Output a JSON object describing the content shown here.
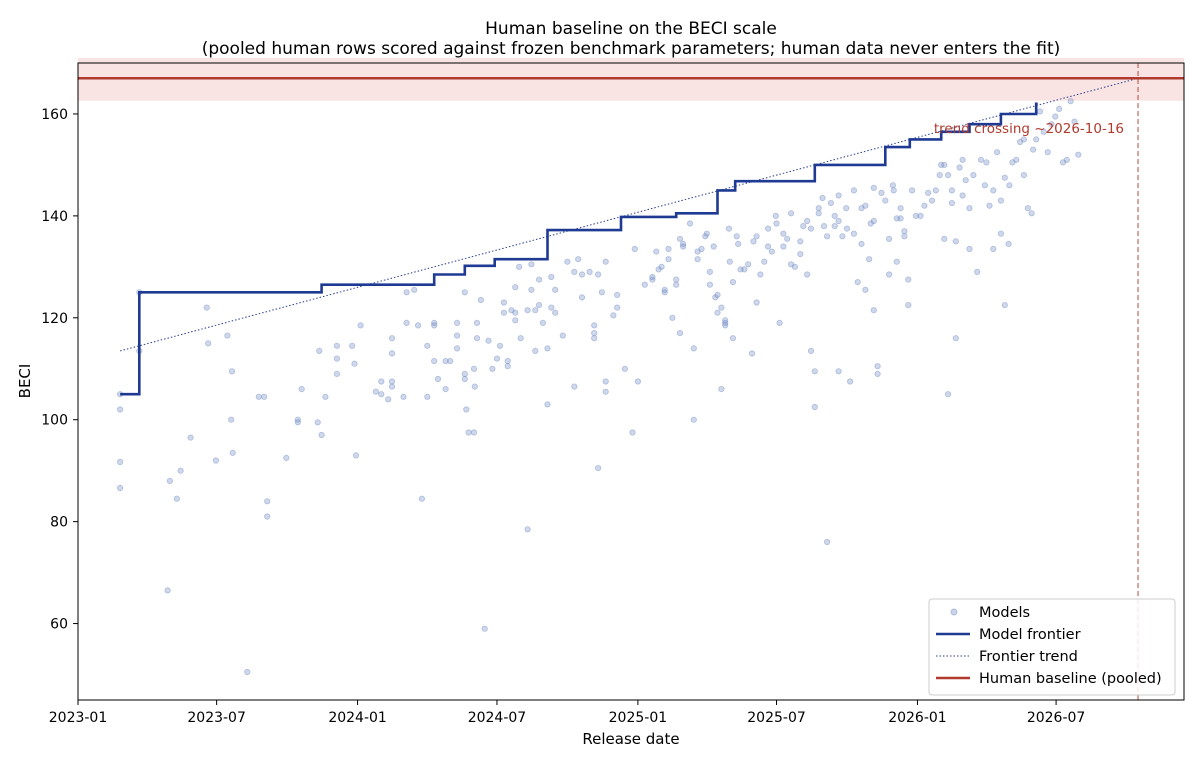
{
  "chart_data": {
    "type": "scatter",
    "title": "Human baseline on the BECI scale",
    "subtitle": "(pooled human rows scored against frozen benchmark parameters; human data never enters the fit)",
    "xlabel": "Release date",
    "ylabel": "BECI",
    "x_ticks": [
      "2023-01",
      "2023-07",
      "2024-01",
      "2024-07",
      "2025-01",
      "2025-07",
      "2026-01",
      "2026-07"
    ],
    "y_ticks": [
      60,
      80,
      100,
      120,
      140,
      160
    ],
    "xlim": [
      "2023-01-01",
      "2026-12-15"
    ],
    "ylim": [
      45,
      170
    ],
    "grid": false,
    "legend_position": "lower-right",
    "legend": [
      "Models",
      "Model frontier",
      "Frontier trend",
      "Human baseline (pooled)"
    ],
    "annotation": "trend crossing ~2026-10-16",
    "colors": {
      "models": "#6b86c2",
      "frontier": "#1f3a93",
      "trend": "#2a3f8f",
      "human": "#b03a2e",
      "human_band": "#f4cccc"
    },
    "human_baseline": {
      "value": 167,
      "band": [
        162.6,
        171.0
      ]
    },
    "trend_crossing_date": "2026-10-16",
    "trend_line": [
      {
        "x": "2023-02-25",
        "y": 113.5
      },
      {
        "x": "2026-10-16",
        "y": 167.0
      }
    ],
    "frontier": [
      {
        "x": "2023-02-25",
        "y": 105
      },
      {
        "x": "2023-03-22",
        "y": 125
      },
      {
        "x": "2023-11-15",
        "y": 126.5
      },
      {
        "x": "2024-04-10",
        "y": 128.5
      },
      {
        "x": "2024-05-20",
        "y": 130.2
      },
      {
        "x": "2024-06-28",
        "y": 131.5
      },
      {
        "x": "2024-09-05",
        "y": 137.2
      },
      {
        "x": "2024-12-10",
        "y": 139.8
      },
      {
        "x": "2025-02-20",
        "y": 140.5
      },
      {
        "x": "2025-04-15",
        "y": 145
      },
      {
        "x": "2025-05-08",
        "y": 146.8
      },
      {
        "x": "2025-08-20",
        "y": 150
      },
      {
        "x": "2025-11-20",
        "y": 153.5
      },
      {
        "x": "2025-12-22",
        "y": 155
      },
      {
        "x": "2026-02-01",
        "y": 156.5
      },
      {
        "x": "2026-03-10",
        "y": 158
      },
      {
        "x": "2026-04-20",
        "y": 160
      },
      {
        "x": "2026-06-05",
        "y": 162
      },
      {
        "x": "2026-06-07",
        "y": 162
      }
    ],
    "models": [
      [
        "2023-02-25",
        105
      ],
      [
        "2023-02-25",
        102
      ],
      [
        "2023-02-25",
        91.7
      ],
      [
        "2023-02-25",
        86.6
      ],
      [
        "2023-03-22",
        125
      ],
      [
        "2023-03-22",
        113.5
      ],
      [
        "2023-04-28",
        66.5
      ],
      [
        "2023-05-01",
        88
      ],
      [
        "2023-05-10",
        84.5
      ],
      [
        "2023-05-15",
        90
      ],
      [
        "2023-05-28",
        96.5
      ],
      [
        "2023-06-18",
        122
      ],
      [
        "2023-06-20",
        115
      ],
      [
        "2023-06-30",
        92
      ],
      [
        "2023-07-15",
        116.5
      ],
      [
        "2023-07-20",
        100
      ],
      [
        "2023-07-21",
        109.5
      ],
      [
        "2023-07-22",
        93.5
      ],
      [
        "2023-08-10",
        50.5
      ],
      [
        "2023-08-25",
        104.5
      ],
      [
        "2023-09-01",
        104.5
      ],
      [
        "2023-09-05",
        84
      ],
      [
        "2023-09-05",
        81
      ],
      [
        "2023-09-30",
        92.5
      ],
      [
        "2023-10-15",
        100
      ],
      [
        "2023-10-15",
        99.5
      ],
      [
        "2023-10-20",
        106
      ],
      [
        "2023-11-10",
        99.5
      ],
      [
        "2023-11-12",
        113.5
      ],
      [
        "2023-11-15",
        97
      ],
      [
        "2023-11-20",
        104.5
      ],
      [
        "2023-12-05",
        114.5
      ],
      [
        "2023-12-05",
        112
      ],
      [
        "2023-12-05",
        109
      ],
      [
        "2023-12-25",
        114.5
      ],
      [
        "2023-12-28",
        111
      ],
      [
        "2023-12-30",
        93
      ],
      [
        "2024-01-05",
        118.5
      ],
      [
        "2024-01-25",
        105.5
      ],
      [
        "2024-02-01",
        107.5
      ],
      [
        "2024-02-01",
        105
      ],
      [
        "2024-02-10",
        104
      ],
      [
        "2024-02-15",
        116
      ],
      [
        "2024-02-15",
        113
      ],
      [
        "2024-02-15",
        107.5
      ],
      [
        "2024-02-15",
        106.5
      ],
      [
        "2024-03-01",
        104.5
      ],
      [
        "2024-03-05",
        119
      ],
      [
        "2024-03-05",
        125
      ],
      [
        "2024-03-15",
        125.5
      ],
      [
        "2024-03-20",
        118.5
      ],
      [
        "2024-03-25",
        84.5
      ],
      [
        "2024-04-01",
        114.5
      ],
      [
        "2024-04-01",
        104.5
      ],
      [
        "2024-04-10",
        119
      ],
      [
        "2024-04-10",
        118.5
      ],
      [
        "2024-04-10",
        111.5
      ],
      [
        "2024-04-15",
        108
      ],
      [
        "2024-04-25",
        111.5
      ],
      [
        "2024-04-25",
        106
      ],
      [
        "2024-05-01",
        111.5
      ],
      [
        "2024-05-10",
        119
      ],
      [
        "2024-05-10",
        116.5
      ],
      [
        "2024-05-10",
        114
      ],
      [
        "2024-05-20",
        125
      ],
      [
        "2024-05-20",
        109
      ],
      [
        "2024-05-20",
        108
      ],
      [
        "2024-05-22",
        102
      ],
      [
        "2024-05-25",
        97.5
      ],
      [
        "2024-06-01",
        110
      ],
      [
        "2024-06-01",
        97.5
      ],
      [
        "2024-06-02",
        106.5
      ],
      [
        "2024-06-05",
        119
      ],
      [
        "2024-06-05",
        116
      ],
      [
        "2024-06-10",
        123.5
      ],
      [
        "2024-06-15",
        59
      ],
      [
        "2024-06-20",
        115.5
      ],
      [
        "2024-06-25",
        110
      ],
      [
        "2024-07-01",
        112
      ],
      [
        "2024-07-05",
        114.5
      ],
      [
        "2024-07-10",
        123
      ],
      [
        "2024-07-10",
        121
      ],
      [
        "2024-07-15",
        111.5
      ],
      [
        "2024-07-15",
        110.5
      ],
      [
        "2024-07-20",
        121.5
      ],
      [
        "2024-07-25",
        126
      ],
      [
        "2024-07-25",
        121
      ],
      [
        "2024-07-25",
        119.5
      ],
      [
        "2024-07-30",
        130
      ],
      [
        "2024-08-01",
        116
      ],
      [
        "2024-08-10",
        121.5
      ],
      [
        "2024-08-10",
        78.5
      ],
      [
        "2024-08-15",
        130.5
      ],
      [
        "2024-08-15",
        125.5
      ],
      [
        "2024-08-20",
        113.5
      ],
      [
        "2024-08-20",
        121.5
      ],
      [
        "2024-08-25",
        127.5
      ],
      [
        "2024-08-25",
        122.5
      ],
      [
        "2024-08-30",
        119
      ],
      [
        "2024-09-05",
        103
      ],
      [
        "2024-09-05",
        114
      ],
      [
        "2024-09-10",
        128
      ],
      [
        "2024-09-10",
        122
      ],
      [
        "2024-09-15",
        125.5
      ],
      [
        "2024-09-15",
        121
      ],
      [
        "2024-09-25",
        116.5
      ],
      [
        "2024-10-01",
        131
      ],
      [
        "2024-10-10",
        106.5
      ],
      [
        "2024-10-10",
        129
      ],
      [
        "2024-10-15",
        131.5
      ],
      [
        "2024-10-20",
        128.5
      ],
      [
        "2024-10-20",
        124
      ],
      [
        "2024-10-30",
        129
      ],
      [
        "2024-11-05",
        116
      ],
      [
        "2024-11-05",
        118.5
      ],
      [
        "2024-11-05",
        117
      ],
      [
        "2024-11-10",
        90.5
      ],
      [
        "2024-11-10",
        128.5
      ],
      [
        "2024-11-15",
        125
      ],
      [
        "2024-11-20",
        107.5
      ],
      [
        "2024-11-20",
        105.5
      ],
      [
        "2024-11-20",
        131
      ],
      [
        "2024-11-30",
        120.5
      ],
      [
        "2024-12-05",
        124.5
      ],
      [
        "2024-12-05",
        122
      ],
      [
        "2024-12-15",
        110
      ],
      [
        "2024-12-25",
        97.5
      ],
      [
        "2024-12-28",
        133.5
      ],
      [
        "2025-01-01",
        107.5
      ],
      [
        "2025-01-10",
        126.5
      ],
      [
        "2025-01-20",
        127.5
      ],
      [
        "2025-01-20",
        128
      ],
      [
        "2025-01-25",
        133
      ],
      [
        "2025-01-28",
        129.5
      ],
      [
        "2025-02-01",
        130
      ],
      [
        "2025-02-05",
        125
      ],
      [
        "2025-02-05",
        125.5
      ],
      [
        "2025-02-10",
        131.5
      ],
      [
        "2025-02-10",
        133.5
      ],
      [
        "2025-02-15",
        120
      ],
      [
        "2025-02-20",
        126.5
      ],
      [
        "2025-02-20",
        127.5
      ],
      [
        "2025-02-25",
        135.5
      ],
      [
        "2025-02-25",
        117
      ],
      [
        "2025-03-01",
        134.5
      ],
      [
        "2025-03-01",
        134
      ],
      [
        "2025-03-10",
        138.5
      ],
      [
        "2025-03-15",
        100
      ],
      [
        "2025-03-15",
        114
      ],
      [
        "2025-03-20",
        131.5
      ],
      [
        "2025-03-20",
        133
      ],
      [
        "2025-03-25",
        133.5
      ],
      [
        "2025-03-30",
        136
      ],
      [
        "2025-04-01",
        136.5
      ],
      [
        "2025-04-05",
        129
      ],
      [
        "2025-04-05",
        126.5
      ],
      [
        "2025-04-10",
        134
      ],
      [
        "2025-04-12",
        124
      ],
      [
        "2025-04-15",
        121
      ],
      [
        "2025-04-15",
        124.5
      ],
      [
        "2025-04-20",
        106
      ],
      [
        "2025-04-20",
        122
      ],
      [
        "2025-04-25",
        119.5
      ],
      [
        "2025-04-25",
        118.5
      ],
      [
        "2025-04-25",
        119
      ],
      [
        "2025-04-30",
        137.5
      ],
      [
        "2025-05-01",
        131
      ],
      [
        "2025-05-05",
        116
      ],
      [
        "2025-05-05",
        127
      ],
      [
        "2025-05-10",
        136
      ],
      [
        "2025-05-12",
        134.5
      ],
      [
        "2025-05-15",
        129.5
      ],
      [
        "2025-05-20",
        129.5
      ],
      [
        "2025-05-25",
        130.5
      ],
      [
        "2025-05-30",
        113
      ],
      [
        "2025-06-01",
        135
      ],
      [
        "2025-06-05",
        123
      ],
      [
        "2025-06-05",
        136
      ],
      [
        "2025-06-10",
        128.5
      ],
      [
        "2025-06-15",
        131
      ],
      [
        "2025-06-20",
        137.5
      ],
      [
        "2025-06-20",
        134
      ],
      [
        "2025-06-25",
        133
      ],
      [
        "2025-06-30",
        140
      ],
      [
        "2025-07-01",
        138.5
      ],
      [
        "2025-07-05",
        119
      ],
      [
        "2025-07-10",
        136.5
      ],
      [
        "2025-07-10",
        134
      ],
      [
        "2025-07-15",
        135.5
      ],
      [
        "2025-07-20",
        130.5
      ],
      [
        "2025-07-20",
        140.5
      ],
      [
        "2025-07-25",
        130
      ],
      [
        "2025-08-01",
        135
      ],
      [
        "2025-08-01",
        132.5
      ],
      [
        "2025-08-05",
        138
      ],
      [
        "2025-08-10",
        139
      ],
      [
        "2025-08-10",
        128.5
      ],
      [
        "2025-08-15",
        137.5
      ],
      [
        "2025-08-15",
        113.5
      ],
      [
        "2025-08-20",
        109.5
      ],
      [
        "2025-08-20",
        102.5
      ],
      [
        "2025-08-25",
        140.5
      ],
      [
        "2025-08-25",
        141.5
      ],
      [
        "2025-08-30",
        143.5
      ],
      [
        "2025-09-01",
        138
      ],
      [
        "2025-09-05",
        76
      ],
      [
        "2025-09-05",
        136
      ],
      [
        "2025-09-10",
        142.5
      ],
      [
        "2025-09-15",
        140
      ],
      [
        "2025-09-15",
        138
      ],
      [
        "2025-09-20",
        144
      ],
      [
        "2025-09-20",
        139
      ],
      [
        "2025-09-20",
        109.5
      ],
      [
        "2025-09-25",
        136
      ],
      [
        "2025-09-30",
        141.5
      ],
      [
        "2025-10-01",
        137.5
      ],
      [
        "2025-10-05",
        107.5
      ],
      [
        "2025-10-10",
        136.5
      ],
      [
        "2025-10-10",
        145
      ],
      [
        "2025-10-15",
        127
      ],
      [
        "2025-10-20",
        134.5
      ],
      [
        "2025-10-20",
        141.5
      ],
      [
        "2025-10-25",
        142
      ],
      [
        "2025-10-25",
        125.5
      ],
      [
        "2025-10-30",
        131.5
      ],
      [
        "2025-11-01",
        138.5
      ],
      [
        "2025-11-05",
        121.5
      ],
      [
        "2025-11-05",
        145.5
      ],
      [
        "2025-11-05",
        139
      ],
      [
        "2025-11-10",
        110.5
      ],
      [
        "2025-11-10",
        109
      ],
      [
        "2025-11-15",
        144.5
      ],
      [
        "2025-11-20",
        143
      ],
      [
        "2025-11-25",
        128.5
      ],
      [
        "2025-11-25",
        135.5
      ],
      [
        "2025-11-30",
        146
      ],
      [
        "2025-12-01",
        145
      ],
      [
        "2025-12-05",
        139.5
      ],
      [
        "2025-12-05",
        131
      ],
      [
        "2025-12-10",
        141.5
      ],
      [
        "2025-12-10",
        139.5
      ],
      [
        "2025-12-15",
        136
      ],
      [
        "2025-12-15",
        137
      ],
      [
        "2025-12-20",
        122.5
      ],
      [
        "2025-12-20",
        127.5
      ],
      [
        "2025-12-25",
        145
      ],
      [
        "2025-12-30",
        140
      ],
      [
        "2026-01-05",
        140
      ],
      [
        "2026-01-10",
        142
      ],
      [
        "2026-01-15",
        144.5
      ],
      [
        "2026-01-20",
        143
      ],
      [
        "2026-01-25",
        145
      ],
      [
        "2026-01-30",
        148
      ],
      [
        "2026-02-01",
        150
      ],
      [
        "2026-02-05",
        135.5
      ],
      [
        "2026-02-05",
        150
      ],
      [
        "2026-02-10",
        148
      ],
      [
        "2026-02-10",
        105
      ],
      [
        "2026-02-15",
        142.5
      ],
      [
        "2026-02-15",
        145
      ],
      [
        "2026-02-20",
        116
      ],
      [
        "2026-02-20",
        135
      ],
      [
        "2026-02-25",
        149.5
      ],
      [
        "2026-03-01",
        151
      ],
      [
        "2026-03-01",
        144
      ],
      [
        "2026-03-05",
        147
      ],
      [
        "2026-03-10",
        141.5
      ],
      [
        "2026-03-10",
        133.5
      ],
      [
        "2026-03-15",
        148
      ],
      [
        "2026-03-20",
        129
      ],
      [
        "2026-03-25",
        151
      ],
      [
        "2026-03-30",
        146
      ],
      [
        "2026-04-01",
        150.5
      ],
      [
        "2026-04-05",
        142
      ],
      [
        "2026-04-10",
        145
      ],
      [
        "2026-04-10",
        133.5
      ],
      [
        "2026-04-15",
        152.5
      ],
      [
        "2026-04-20",
        143
      ],
      [
        "2026-04-20",
        136.5
      ],
      [
        "2026-04-25",
        122.5
      ],
      [
        "2026-04-25",
        147.5
      ],
      [
        "2026-04-30",
        134.5
      ],
      [
        "2026-05-01",
        146
      ],
      [
        "2026-05-05",
        150.5
      ],
      [
        "2026-05-10",
        151
      ],
      [
        "2026-05-15",
        154.5
      ],
      [
        "2026-05-20",
        155
      ],
      [
        "2026-05-20",
        148
      ],
      [
        "2026-05-25",
        141.5
      ],
      [
        "2026-05-30",
        140.5
      ],
      [
        "2026-06-01",
        153
      ],
      [
        "2026-06-05",
        155
      ],
      [
        "2026-06-10",
        160.5
      ],
      [
        "2026-06-15",
        156.5
      ],
      [
        "2026-06-20",
        152.5
      ],
      [
        "2026-06-25",
        158
      ],
      [
        "2026-06-30",
        159.5
      ],
      [
        "2026-07-05",
        161
      ],
      [
        "2026-07-10",
        150.5
      ],
      [
        "2026-07-15",
        151
      ],
      [
        "2026-07-20",
        162.5
      ],
      [
        "2026-07-25",
        158.5
      ],
      [
        "2026-07-30",
        152
      ]
    ]
  }
}
